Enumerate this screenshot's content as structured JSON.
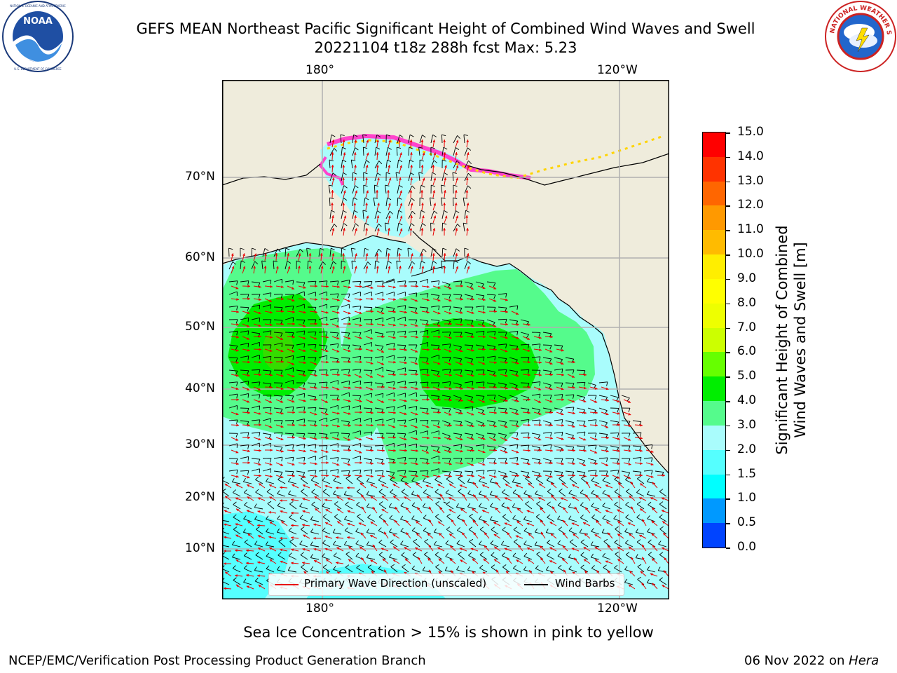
{
  "header": {
    "title_line1": "GEFS MEAN Northeast Pacific Significant Height of Combined Wind Waves and Swell",
    "title_line2": "20221104 t18z 288h fcst   Max: 5.23"
  },
  "logos": {
    "left": {
      "name": "noaa-logo",
      "text": "NOAA",
      "ring": "NATIONAL OCEANIC AND ATMOSPHERIC ADMINISTRATION · U.S. DEPARTMENT OF COMMERCE"
    },
    "right": {
      "name": "nws-logo",
      "ring": "NATIONAL WEATHER SERVICE"
    }
  },
  "map": {
    "lon_labels_top": [
      "180°",
      "120°W"
    ],
    "lon_labels_bottom": [
      "180°",
      "120°W"
    ],
    "lat_labels": [
      "70°N",
      "60°N",
      "50°N",
      "40°N",
      "30°N",
      "20°N",
      "10°N"
    ],
    "legend": {
      "wave_direction": "Primary Wave Direction (unscaled)",
      "wind_barbs": "Wind Barbs"
    },
    "colors": {
      "land": "#efecdc",
      "ocean_low": "#a9fcfc",
      "ocean_mid": "#55fb8c",
      "ocean_high": "#00ee00",
      "arrow": "#e80000",
      "barb": "#000000",
      "grid": "#b0b0b0"
    }
  },
  "colorbar": {
    "label_line1": "Significant Height of Combined",
    "label_line2": "Wind Waves and Swell [m]",
    "ticks": [
      "15.0",
      "14.0",
      "13.0",
      "12.0",
      "11.0",
      "10.0",
      "9.0",
      "8.0",
      "7.0",
      "6.0",
      "5.0",
      "4.0",
      "3.0",
      "2.0",
      "1.5",
      "1.0",
      "0.5",
      "0.0"
    ],
    "band_colors": [
      "#ff0000",
      "#ff3300",
      "#ff6600",
      "#ff9900",
      "#ffbb00",
      "#ffee00",
      "#ffff00",
      "#eeff00",
      "#ccff00",
      "#66ff00",
      "#00ee00",
      "#55fb8c",
      "#a9fcfc",
      "#55ffff",
      "#00ffff",
      "#0099ff",
      "#0044ff",
      "#0000ff"
    ]
  },
  "footer": {
    "sea_ice_note": "Sea Ice Concentration > 15% is shown in pink to yellow",
    "branch": "NCEP/EMC/Verification Post Processing Product Generation Branch",
    "date": "06 Nov 2022 on ",
    "host": "Hera"
  }
}
